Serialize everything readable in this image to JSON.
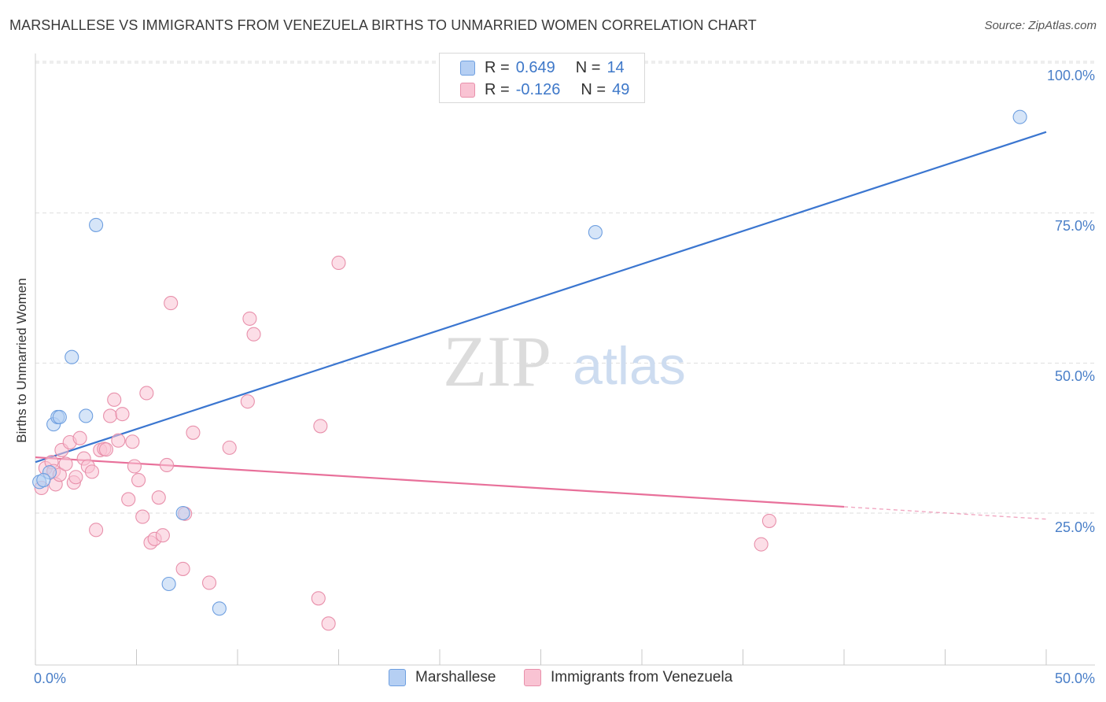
{
  "title": "MARSHALLESE VS IMMIGRANTS FROM VENEZUELA BIRTHS TO UNMARRIED WOMEN CORRELATION CHART",
  "source": "Source: ZipAtlas.com",
  "watermark": {
    "zip": "ZIP",
    "atlas": "atlas"
  },
  "legend": {
    "r_label": "R =",
    "n_label": "N =",
    "rows": [
      {
        "r": "0.649",
        "n": "14",
        "color": "#b5cff3",
        "border": "#6e9fe0"
      },
      {
        "r": "-0.126",
        "n": "49",
        "color": "#f9c3d3",
        "border": "#e890ab"
      }
    ]
  },
  "bottom_legend": [
    {
      "label": "Marshallese",
      "color": "#b5cff3",
      "border": "#6e9fe0"
    },
    {
      "label": "Immigrants from Venezuela",
      "color": "#f9c3d3",
      "border": "#e890ab"
    }
  ],
  "chart_data": {
    "type": "scatter",
    "title": "MARSHALLESE VS IMMIGRANTS FROM VENEZUELA BIRTHS TO UNMARRIED WOMEN CORRELATION CHART",
    "xlabel": "",
    "ylabel": "Births to Unmarried Women",
    "xlim": [
      0,
      50
    ],
    "ylim": [
      0,
      102
    ],
    "x_tick_labels": [
      "0.0%",
      "50.0%"
    ],
    "y_ticks": [
      25,
      50,
      75,
      100
    ],
    "y_tick_labels": [
      "25.0%",
      "50.0%",
      "75.0%",
      "100.0%"
    ],
    "grid": true,
    "series": [
      {
        "name": "Marshallese",
        "color": "#6e9fe0",
        "fill": "#b5cff3",
        "line_color": "#3b76d0",
        "trend": {
          "x0": 0,
          "y0": 33.5,
          "x1": 50,
          "y1": 88.5,
          "dashed_from": null
        },
        "points": [
          [
            0.2,
            30.2
          ],
          [
            0.7,
            31.8
          ],
          [
            0.9,
            39.8
          ],
          [
            1.1,
            41.0
          ],
          [
            1.2,
            41.0
          ],
          [
            1.8,
            51.0
          ],
          [
            2.5,
            41.2
          ],
          [
            3.0,
            73.0
          ],
          [
            6.6,
            13.2
          ],
          [
            7.3,
            25.0
          ],
          [
            9.1,
            9.1
          ],
          [
            27.7,
            71.8
          ],
          [
            48.7,
            91.0
          ],
          [
            0.4,
            30.5
          ]
        ]
      },
      {
        "name": "Immigrants from Venezuela",
        "color": "#e890ab",
        "fill": "#f9c3d3",
        "line_color": "#e8709a",
        "trend": {
          "x0": 0,
          "y0": 34.3,
          "x1": 50,
          "y1": 24.0,
          "dashed_from": 40
        },
        "points": [
          [
            0.3,
            29.2
          ],
          [
            0.5,
            32.5
          ],
          [
            0.8,
            33.5
          ],
          [
            0.9,
            32.0
          ],
          [
            1.0,
            29.8
          ],
          [
            1.2,
            31.4
          ],
          [
            1.3,
            35.5
          ],
          [
            1.5,
            33.2
          ],
          [
            1.7,
            36.8
          ],
          [
            1.9,
            30.1
          ],
          [
            2.0,
            31.0
          ],
          [
            2.2,
            37.5
          ],
          [
            2.4,
            34.1
          ],
          [
            2.6,
            32.8
          ],
          [
            2.8,
            31.9
          ],
          [
            3.0,
            22.2
          ],
          [
            3.2,
            35.5
          ],
          [
            3.4,
            35.7
          ],
          [
            3.7,
            41.2
          ],
          [
            3.9,
            43.9
          ],
          [
            4.1,
            37.1
          ],
          [
            4.3,
            41.5
          ],
          [
            4.6,
            27.3
          ],
          [
            4.8,
            36.9
          ],
          [
            4.9,
            32.8
          ],
          [
            5.1,
            30.5
          ],
          [
            5.3,
            24.4
          ],
          [
            5.5,
            45.0
          ],
          [
            5.7,
            20.1
          ],
          [
            5.9,
            20.7
          ],
          [
            6.1,
            27.6
          ],
          [
            6.3,
            21.3
          ],
          [
            6.5,
            33.0
          ],
          [
            6.7,
            60.0
          ],
          [
            7.3,
            15.7
          ],
          [
            7.4,
            24.9
          ],
          [
            7.8,
            38.4
          ],
          [
            8.6,
            13.4
          ],
          [
            9.6,
            35.9
          ],
          [
            10.5,
            43.6
          ],
          [
            10.6,
            57.4
          ],
          [
            10.8,
            54.8
          ],
          [
            14.1,
            39.5
          ],
          [
            14.0,
            10.8
          ],
          [
            14.5,
            6.6
          ],
          [
            15.0,
            66.7
          ],
          [
            36.3,
            23.7
          ],
          [
            35.9,
            19.8
          ],
          [
            3.5,
            35.6
          ]
        ]
      }
    ]
  }
}
